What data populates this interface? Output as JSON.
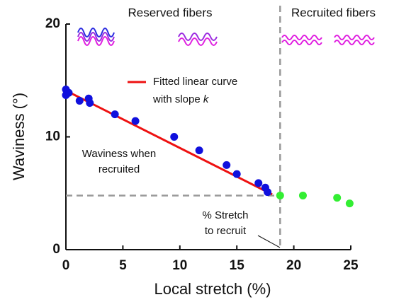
{
  "chart_data": {
    "type": "scatter",
    "xlabel": "Local stretch (%)",
    "ylabel": "Waviness (°)",
    "xlim": [
      0,
      25
    ],
    "ylim": [
      0,
      20
    ],
    "xticks": [
      0,
      5,
      10,
      15,
      20,
      25
    ],
    "yticks": [
      0,
      10,
      20
    ],
    "series": [
      {
        "name": "Reserved fibers",
        "color": "#1010dd",
        "x": [
          0,
          0,
          0.25,
          1.2,
          2,
          2.1,
          4.3,
          6.1,
          9.5,
          11.7,
          14.1,
          15,
          16.9,
          17.5,
          17.7
        ],
        "values": [
          14.2,
          13.7,
          13.9,
          13.2,
          13.4,
          13.0,
          12.0,
          11.4,
          10.0,
          8.8,
          7.5,
          6.7,
          5.9,
          5.5,
          5.1
        ]
      },
      {
        "name": "Recruited fibers",
        "color": "#33ee33",
        "x": [
          18.8,
          20.8,
          23.8,
          24.9
        ],
        "values": [
          4.8,
          4.8,
          4.6,
          4.1
        ]
      }
    ],
    "fit": {
      "x": [
        0,
        18.1
      ],
      "y": [
        14.1,
        4.9
      ],
      "color": "#ee1111"
    },
    "recruit_point": {
      "x": 18.8,
      "y": 4.8
    },
    "annotations": {
      "legend_line1": "Fitted linear curve",
      "legend_line2": "with slope",
      "legend_symbol": "k",
      "waviness_line1": "Waviness when",
      "waviness_line2": "recruited",
      "stretch_line1": "% Stretch",
      "stretch_line2": "to recruit"
    }
  }
}
